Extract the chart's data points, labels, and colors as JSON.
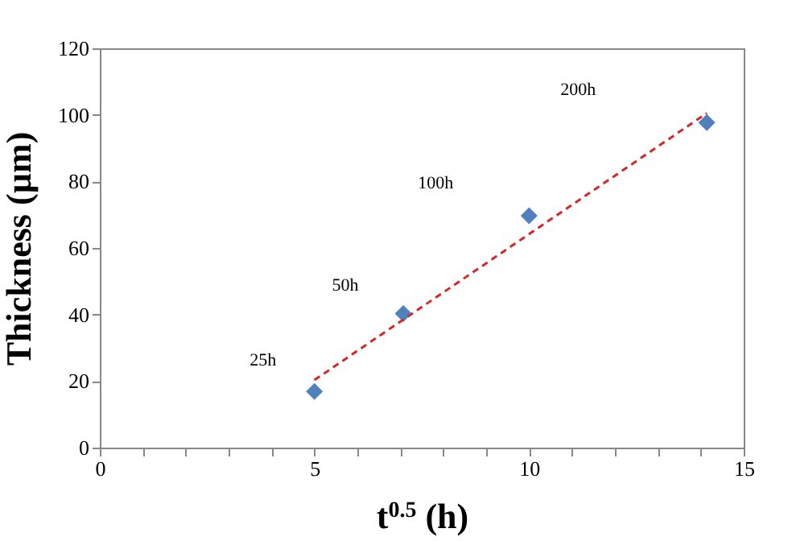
{
  "chart_data": {
    "type": "scatter",
    "xlabel": "t$^{0.5}$ (h)",
    "ylabel": "Thickness (µm)",
    "xlim": [
      0,
      15
    ],
    "ylim": [
      0,
      120
    ],
    "xticks": [
      0,
      {
        "value": 1,
        "label": null
      },
      {
        "value": 2,
        "label": null
      },
      {
        "value": 3,
        "label": null
      },
      {
        "value": 4,
        "label": null
      },
      5,
      {
        "value": 6,
        "label": null
      },
      {
        "value": 7,
        "label": null
      },
      {
        "value": 8,
        "label": null
      },
      {
        "value": 9,
        "label": null
      },
      10,
      {
        "value": 11,
        "label": null
      },
      {
        "value": 12,
        "label": null
      },
      {
        "value": 13,
        "label": null
      },
      {
        "value": 14,
        "label": null
      },
      15
    ],
    "yticks": [
      0,
      20,
      40,
      60,
      80,
      100,
      120
    ],
    "grid": false,
    "marker": "diamond",
    "series": [
      {
        "color": "#4f81bd",
        "x": [
          5,
          7.07,
          10,
          14.14
        ],
        "values": [
          16.9,
          40.3,
          69.7,
          97.7
        ]
      },
      {
        "type": "line",
        "color": "#d62728",
        "line_style": "dashed",
        "marker": "none",
        "x": [
          5,
          14.14
        ],
        "values": [
          20.3,
          100.5
        ]
      }
    ],
    "annotations": [
      "25h",
      "50h",
      "100h",
      "200h"
    ]
  }
}
